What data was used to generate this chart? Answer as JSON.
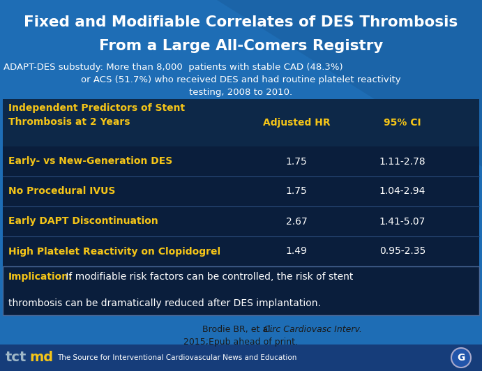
{
  "title_line1": "Fixed and Modifiable Correlates of DES Thrombosis",
  "title_line2": "From a Large All-Comers Registry",
  "subtitle_line1": "ADAPT-DES substudy: More than 8,000  patients with stable CAD (48.3%)",
  "subtitle_line2": "or ACS (51.7%) who received DES and had routine platelet reactivity",
  "subtitle_line3": "testing, 2008 to 2010.",
  "table_header_col0": "Independent Predictors of Stent\nThrombosis at 2 Years",
  "table_header_col1": "Adjusted HR",
  "table_header_col2": "95% CI",
  "table_rows": [
    {
      "label": "Early- vs New-Generation DES",
      "hr": "1.75",
      "ci": "1.11-2.78"
    },
    {
      "label": "No Procedural IVUS",
      "hr": "1.75",
      "ci": "1.04-2.94"
    },
    {
      "label": "Early DAPT Discontinuation",
      "hr": "2.67",
      "ci": "1.41-5.07"
    },
    {
      "label": "High Platelet Reactivity on Clopidogrel",
      "hr": "1.49",
      "ci": "0.95-2.35"
    }
  ],
  "implication_label": "Implication:",
  "implication_text_line1": " If modifiable risk factors can be controlled, the risk of stent",
  "implication_text_line2": "thrombosis can be dramatically reduced after DES implantation.",
  "citation_normal": "Brodie BR, et al. ",
  "citation_italic": "Circ Cardiovasc Interv.",
  "citation_line2": "2015;Epub ahead of print.",
  "footer_text": "The Source for Interventional Cardiovascular News and Education",
  "bg_color": "#1e6db5",
  "table_bg": "#0a1e3c",
  "table_header_bg": "#0d2848",
  "implication_bg": "#0a1e3c",
  "footer_bg": "#163d7a",
  "title_color": "#ffffff",
  "subtitle_color": "#ffffff",
  "header_label_color": "#f5c518",
  "row_label_color": "#f5c518",
  "row_value_color": "#ffffff",
  "implication_label_color": "#f5c518",
  "implication_text_color": "#ffffff",
  "citation_color": "#1a1a1a",
  "footer_color": "#ffffff",
  "tctmd_tc_color": "#a0b8c8",
  "tctmd_md_color": "#f5c518"
}
